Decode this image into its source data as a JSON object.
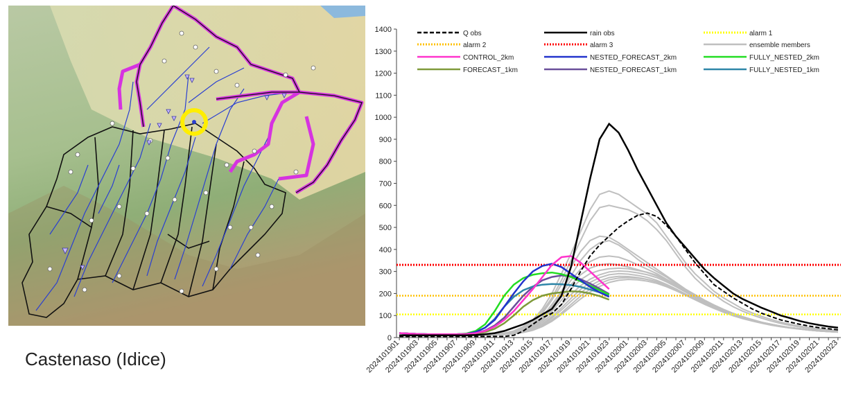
{
  "map": {
    "caption": "Castenaso (Idice)"
  },
  "chart_data": {
    "type": "line",
    "title": "",
    "xlabel": "",
    "ylabel": "",
    "ylim": [
      0,
      1400
    ],
    "yticks": [
      0,
      100,
      200,
      300,
      400,
      500,
      600,
      700,
      800,
      900,
      1000,
      1100,
      1200,
      1300,
      1400
    ],
    "x": [
      "2024101901",
      "2024101902",
      "2024101903",
      "2024101904",
      "2024101905",
      "2024101906",
      "2024101907",
      "2024101908",
      "2024101909",
      "2024101910",
      "2024101911",
      "2024101912",
      "2024101913",
      "2024101914",
      "2024101915",
      "2024101916",
      "2024101917",
      "2024101918",
      "2024101919",
      "2024101920",
      "2024101921",
      "2024101922",
      "2024101923",
      "2024102000",
      "2024102001",
      "2024102002",
      "2024102003",
      "2024102004",
      "2024102005",
      "2024102006",
      "2024102007",
      "2024102008",
      "2024102009",
      "2024102010",
      "2024102011",
      "2024102012",
      "2024102013",
      "2024102014",
      "2024102015",
      "2024102016",
      "2024102017",
      "2024102018",
      "2024102019",
      "2024102020",
      "2024102021",
      "2024102022",
      "2024102023"
    ],
    "xticks_shown": [
      "2024101901",
      "2024101903",
      "2024101905",
      "2024101907",
      "2024101909",
      "2024101911",
      "2024101913",
      "2024101915",
      "2024101917",
      "2024101919",
      "2024101921",
      "2024101923",
      "2024102001",
      "2024102003",
      "2024102005",
      "2024102007",
      "2024102009",
      "2024102011",
      "2024102013",
      "2024102015",
      "2024102017",
      "2024102019",
      "2024102021",
      "2024102023"
    ],
    "grid": false,
    "legend_position": "top",
    "series": [
      {
        "name": "Q obs",
        "color": "#000000",
        "style": "dashed",
        "width": 2,
        "values": [
          5,
          5,
          5,
          5,
          5,
          5,
          5,
          5,
          5,
          5,
          5,
          5,
          10,
          30,
          60,
          90,
          110,
          150,
          220,
          300,
          370,
          420,
          460,
          500,
          530,
          555,
          565,
          550,
          510,
          460,
          400,
          340,
          290,
          240,
          210,
          180,
          155,
          130,
          110,
          95,
          80,
          70,
          60,
          52,
          45,
          40,
          35
        ]
      },
      {
        "name": "rain obs",
        "color": "#000000",
        "style": "solid",
        "width": 2.5,
        "values": [
          10,
          10,
          10,
          10,
          10,
          10,
          10,
          10,
          12,
          15,
          20,
          30,
          45,
          60,
          80,
          105,
          130,
          190,
          320,
          520,
          720,
          900,
          970,
          930,
          850,
          760,
          680,
          600,
          520,
          460,
          410,
          360,
          310,
          270,
          235,
          200,
          175,
          155,
          135,
          118,
          100,
          88,
          75,
          65,
          57,
          50,
          45
        ]
      },
      {
        "name": "alarm 1",
        "color": "#ffff00",
        "style": "dotted",
        "width": 2.5,
        "constant": 105
      },
      {
        "name": "alarm 2",
        "color": "#ffc000",
        "style": "dotted",
        "width": 2.5,
        "constant": 190
      },
      {
        "name": "alarm 3",
        "color": "#ff0000",
        "style": "dotted",
        "width": 3,
        "constant": 330
      },
      {
        "name": "ensemble members",
        "color": "#bfbfbf",
        "style": "solid",
        "width": 2,
        "members": [
          [
            8,
            8,
            8,
            8,
            8,
            8,
            8,
            9,
            10,
            12,
            15,
            20,
            30,
            50,
            80,
            130,
            200,
            290,
            380,
            480,
            580,
            650,
            665,
            650,
            620,
            590,
            560,
            520,
            460,
            400,
            340,
            290,
            250,
            210,
            180,
            155,
            130,
            112,
            96,
            82,
            70,
            60,
            52,
            45,
            40,
            36,
            32
          ],
          [
            8,
            8,
            8,
            8,
            8,
            8,
            8,
            9,
            10,
            12,
            15,
            20,
            28,
            45,
            75,
            120,
            180,
            260,
            350,
            440,
            530,
            590,
            600,
            590,
            580,
            560,
            530,
            490,
            440,
            380,
            320,
            270,
            230,
            195,
            165,
            140,
            120,
            103,
            88,
            75,
            64,
            55,
            48,
            42,
            37,
            33,
            30
          ],
          [
            8,
            8,
            8,
            8,
            8,
            8,
            8,
            9,
            10,
            12,
            14,
            18,
            25,
            40,
            65,
            110,
            170,
            240,
            320,
            390,
            440,
            460,
            455,
            430,
            400,
            370,
            340,
            310,
            280,
            250,
            220,
            195,
            170,
            148,
            128,
            110,
            95,
            82,
            70,
            60,
            52,
            45,
            40,
            35,
            31,
            28,
            26
          ],
          [
            8,
            8,
            8,
            8,
            8,
            8,
            8,
            9,
            10,
            12,
            14,
            18,
            25,
            38,
            60,
            95,
            150,
            210,
            280,
            350,
            400,
            430,
            440,
            420,
            390,
            355,
            325,
            300,
            275,
            245,
            215,
            190,
            165,
            144,
            125,
            108,
            93,
            80,
            69,
            60,
            52,
            45,
            40,
            35,
            31,
            28,
            26
          ],
          [
            8,
            8,
            8,
            8,
            8,
            8,
            8,
            9,
            10,
            11,
            13,
            16,
            22,
            35,
            55,
            90,
            140,
            200,
            260,
            310,
            345,
            365,
            370,
            365,
            350,
            330,
            310,
            290,
            265,
            240,
            212,
            187,
            163,
            142,
            123,
            106,
            92,
            80,
            69,
            60,
            52,
            45,
            40,
            35,
            31,
            28,
            26
          ],
          [
            8,
            8,
            8,
            8,
            8,
            8,
            8,
            9,
            10,
            11,
            13,
            16,
            22,
            33,
            52,
            85,
            130,
            185,
            240,
            285,
            315,
            330,
            335,
            330,
            320,
            308,
            295,
            280,
            258,
            235,
            208,
            184,
            160,
            140,
            121,
            105,
            91,
            79,
            68,
            59,
            51,
            45,
            40,
            35,
            31,
            28,
            26
          ],
          [
            8,
            8,
            8,
            8,
            8,
            8,
            8,
            9,
            10,
            11,
            13,
            16,
            20,
            30,
            48,
            78,
            120,
            170,
            220,
            262,
            290,
            305,
            312,
            315,
            312,
            305,
            296,
            283,
            262,
            238,
            212,
            188,
            164,
            143,
            124,
            107,
            93,
            80,
            69,
            60,
            52,
            45,
            40,
            35,
            31,
            28,
            26
          ],
          [
            8,
            8,
            8,
            8,
            8,
            8,
            8,
            9,
            10,
            11,
            12,
            15,
            20,
            28,
            44,
            70,
            105,
            150,
            195,
            235,
            265,
            285,
            298,
            302,
            300,
            294,
            285,
            272,
            253,
            231,
            207,
            183,
            160,
            140,
            121,
            105,
            91,
            79,
            68,
            59,
            51,
            45,
            40,
            35,
            31,
            28,
            26
          ],
          [
            8,
            8,
            8,
            8,
            8,
            8,
            8,
            9,
            10,
            11,
            12,
            14,
            18,
            26,
            40,
            62,
            95,
            135,
            178,
            218,
            250,
            272,
            285,
            290,
            288,
            282,
            273,
            260,
            242,
            221,
            198,
            176,
            155,
            135,
            117,
            101,
            88,
            76,
            66,
            57,
            50,
            44,
            39,
            34,
            30,
            27,
            25
          ],
          [
            8,
            8,
            8,
            8,
            8,
            8,
            8,
            9,
            10,
            11,
            12,
            14,
            18,
            25,
            38,
            58,
            88,
            125,
            165,
            203,
            235,
            258,
            272,
            278,
            277,
            272,
            264,
            252,
            235,
            215,
            193,
            172,
            151,
            132,
            115,
            99,
            86,
            75,
            65,
            56,
            49,
            43,
            38,
            34,
            30,
            27,
            25
          ],
          [
            8,
            8,
            8,
            8,
            8,
            8,
            8,
            9,
            10,
            11,
            12,
            14,
            17,
            24,
            36,
            54,
            80,
            112,
            150,
            188,
            220,
            245,
            262,
            270,
            272,
            270,
            264,
            254,
            238,
            219,
            198,
            177,
            156,
            137,
            119,
            103,
            89,
            77,
            67,
            58,
            50,
            44,
            39,
            34,
            30,
            27,
            25
          ],
          [
            8,
            8,
            8,
            8,
            8,
            8,
            8,
            9,
            10,
            11,
            12,
            14,
            17,
            23,
            33,
            50,
            74,
            105,
            140,
            175,
            207,
            232,
            250,
            260,
            264,
            262,
            256,
            246,
            231,
            213,
            193,
            173,
            153,
            134,
            117,
            101,
            88,
            76,
            66,
            57,
            50,
            44,
            39,
            34,
            30,
            27,
            25
          ]
        ]
      },
      {
        "name": "CONTROL_2km",
        "color": "#ff33cc",
        "style": "solid",
        "width": 2.5,
        "values": [
          20,
          18,
          16,
          15,
          15,
          15,
          15,
          16,
          20,
          30,
          50,
          80,
          120,
          170,
          220,
          275,
          330,
          365,
          370,
          340,
          300,
          260,
          220,
          null,
          null,
          null,
          null,
          null,
          null,
          null,
          null,
          null,
          null,
          null,
          null,
          null,
          null,
          null,
          null,
          null,
          null,
          null,
          null,
          null,
          null,
          null,
          null
        ]
      },
      {
        "name": "NESTED_FORECAST_2km",
        "color": "#2233cc",
        "style": "solid",
        "width": 2.5,
        "values": [
          20,
          18,
          16,
          15,
          15,
          15,
          15,
          16,
          25,
          45,
          80,
          140,
          200,
          255,
          300,
          325,
          335,
          320,
          290,
          260,
          230,
          205,
          185,
          null,
          null,
          null,
          null,
          null,
          null,
          null,
          null,
          null,
          null,
          null,
          null,
          null,
          null,
          null,
          null,
          null,
          null,
          null,
          null,
          null,
          null,
          null,
          null
        ]
      },
      {
        "name": "FULLY_NESTED_2km",
        "color": "#22dd22",
        "style": "solid",
        "width": 2.5,
        "values": [
          20,
          18,
          16,
          15,
          15,
          15,
          15,
          18,
          30,
          60,
          120,
          190,
          240,
          270,
          285,
          292,
          295,
          288,
          275,
          255,
          235,
          215,
          195,
          null,
          null,
          null,
          null,
          null,
          null,
          null,
          null,
          null,
          null,
          null,
          null,
          null,
          null,
          null,
          null,
          null,
          null,
          null,
          null,
          null,
          null,
          null,
          null
        ]
      },
      {
        "name": "FORECAST_1km",
        "color": "#7f9a3a",
        "style": "solid",
        "width": 2.5,
        "values": [
          20,
          18,
          16,
          15,
          15,
          15,
          15,
          16,
          18,
          25,
          40,
          65,
          100,
          140,
          170,
          190,
          200,
          205,
          210,
          208,
          200,
          188,
          172,
          null,
          null,
          null,
          null,
          null,
          null,
          null,
          null,
          null,
          null,
          null,
          null,
          null,
          null,
          null,
          null,
          null,
          null,
          null,
          null,
          null,
          null,
          null,
          null
        ]
      },
      {
        "name": "NESTED_FORECAST_1km",
        "color": "#6a4f9a",
        "style": "solid",
        "width": 2.5,
        "values": [
          20,
          18,
          16,
          15,
          15,
          15,
          15,
          16,
          20,
          32,
          55,
          90,
          140,
          190,
          230,
          260,
          275,
          282,
          278,
          265,
          245,
          222,
          198,
          null,
          null,
          null,
          null,
          null,
          null,
          null,
          null,
          null,
          null,
          null,
          null,
          null,
          null,
          null,
          null,
          null,
          null,
          null,
          null,
          null,
          null,
          null,
          null
        ]
      },
      {
        "name": "FULLY_NESTED_1km",
        "color": "#2e86a8",
        "style": "solid",
        "width": 2.5,
        "values": [
          20,
          18,
          16,
          15,
          15,
          15,
          15,
          17,
          25,
          45,
          85,
          140,
          185,
          215,
          232,
          240,
          243,
          242,
          238,
          230,
          218,
          205,
          190,
          null,
          null,
          null,
          null,
          null,
          null,
          null,
          null,
          null,
          null,
          null,
          null,
          null,
          null,
          null,
          null,
          null,
          null,
          null,
          null,
          null,
          null,
          null,
          null
        ]
      }
    ],
    "legend_order": [
      "Q obs",
      "rain obs",
      "alarm 1",
      "alarm 2",
      "alarm 3",
      "ensemble members",
      "CONTROL_2km",
      "NESTED_FORECAST_2km",
      "FULLY_NESTED_2km",
      "FORECAST_1km",
      "NESTED_FORECAST_1km",
      "FULLY_NESTED_1km"
    ]
  }
}
